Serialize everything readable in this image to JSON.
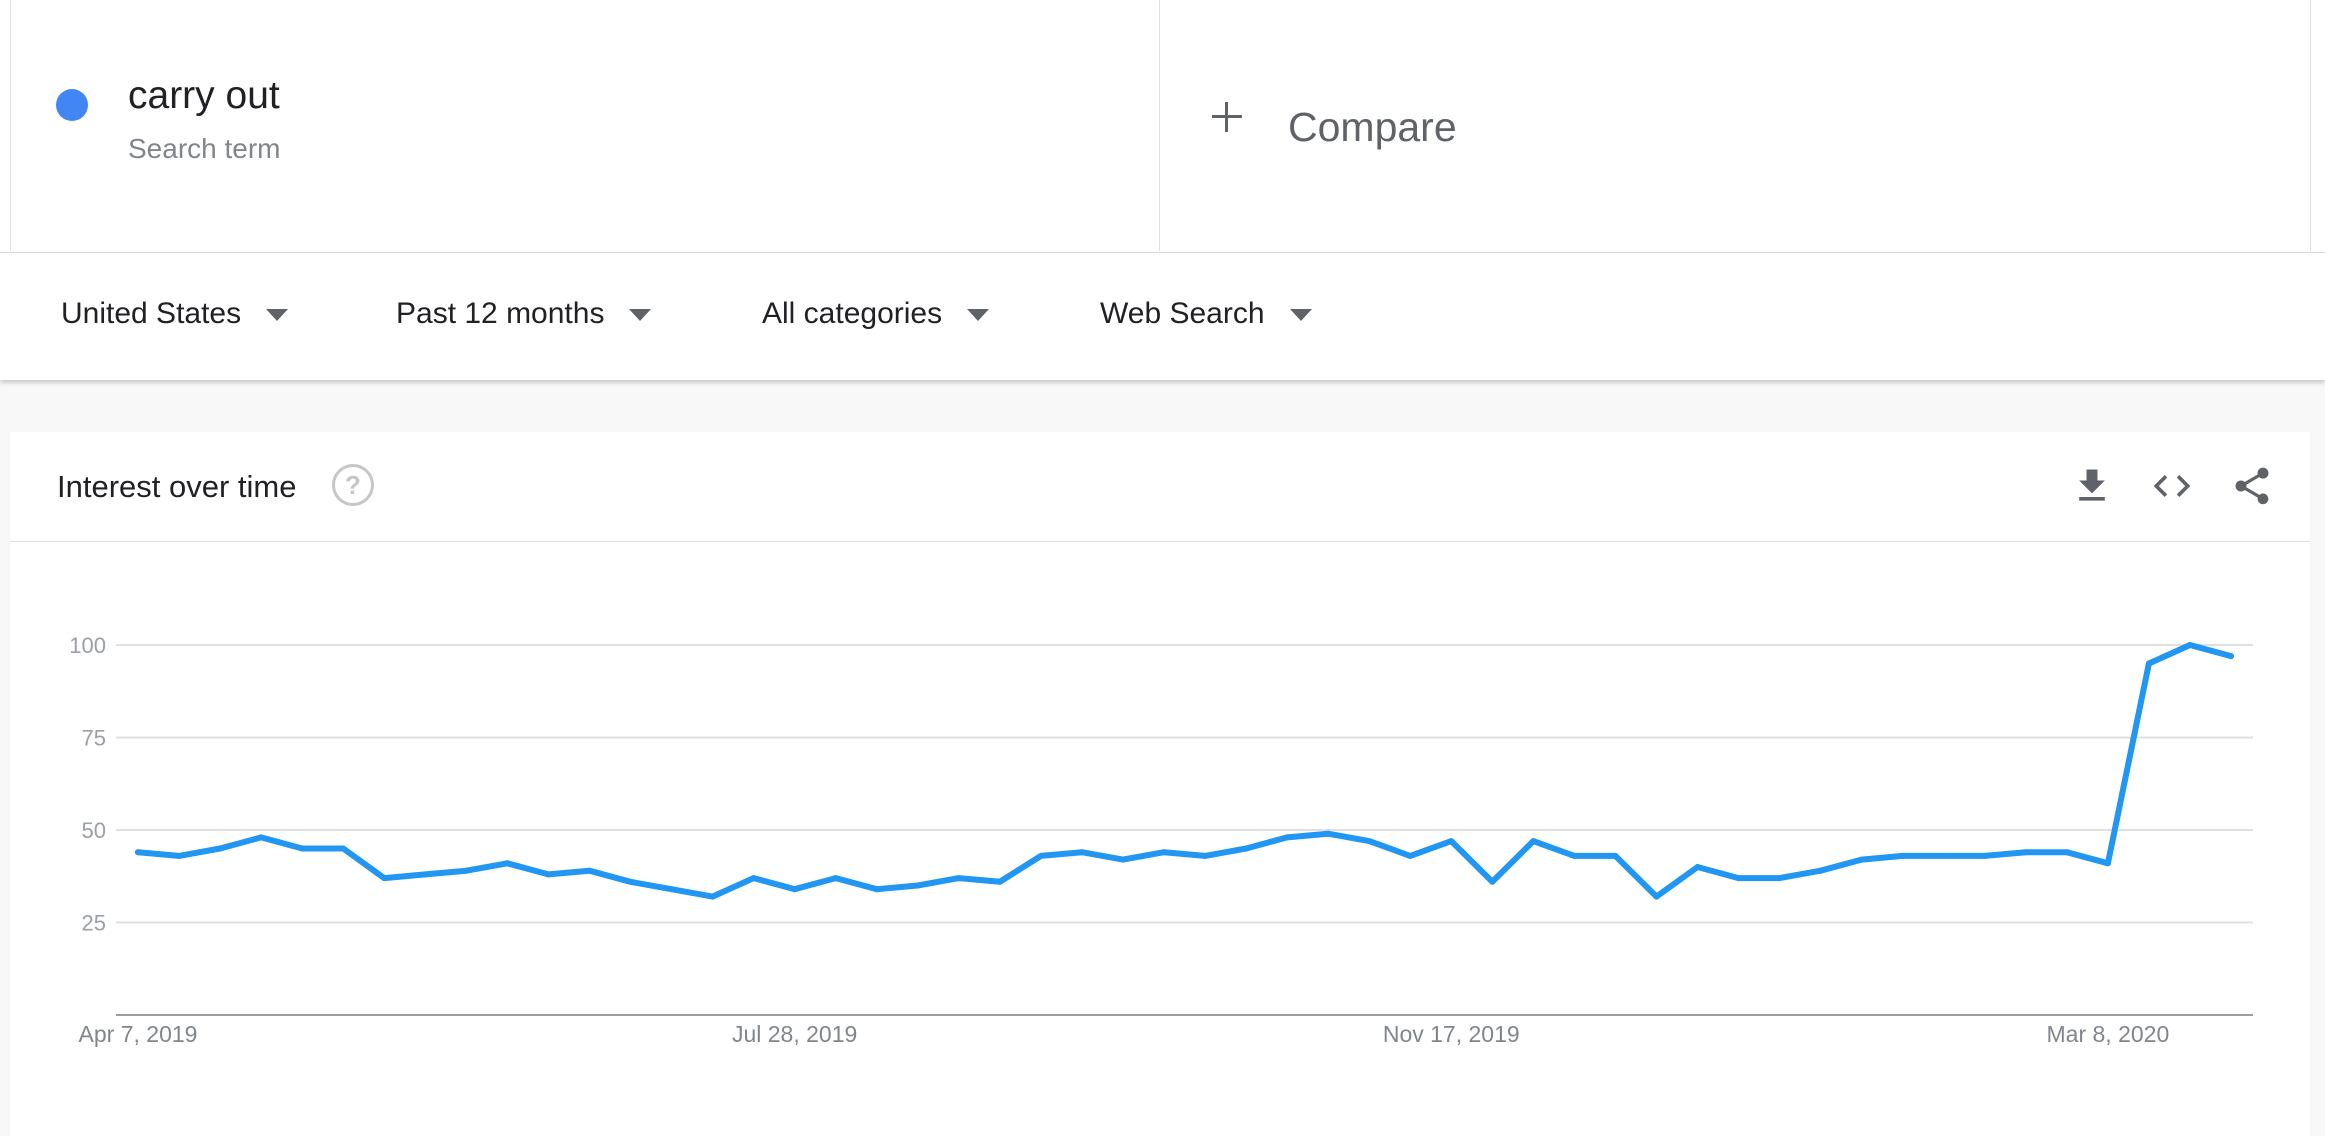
{
  "search_term": {
    "name": "carry out",
    "type_label": "Search term",
    "color": "#4285f4"
  },
  "compare": {
    "label": "Compare"
  },
  "filters": {
    "region": "United States",
    "time_range": "Past 12 months",
    "category": "All categories",
    "search_type": "Web Search"
  },
  "chart_card": {
    "title": "Interest over time",
    "icons": [
      "help-icon",
      "download-icon",
      "embed-icon",
      "share-icon"
    ]
  },
  "chart_data": {
    "type": "line",
    "title": "",
    "xlabel": "",
    "ylabel": "",
    "ylim": [
      0,
      100
    ],
    "yticks": [
      25,
      50,
      75,
      100
    ],
    "grid": true,
    "x_tick_labels": [
      "Apr 7, 2019",
      "Jul 28, 2019",
      "Nov 17, 2019",
      "Mar 8, 2020"
    ],
    "x": [
      "Apr 7, 2019",
      "Apr 14, 2019",
      "Apr 21, 2019",
      "Apr 28, 2019",
      "May 5, 2019",
      "May 12, 2019",
      "May 19, 2019",
      "May 26, 2019",
      "Jun 2, 2019",
      "Jun 9, 2019",
      "Jun 16, 2019",
      "Jun 23, 2019",
      "Jun 30, 2019",
      "Jul 7, 2019",
      "Jul 14, 2019",
      "Jul 21, 2019",
      "Jul 28, 2019",
      "Aug 4, 2019",
      "Aug 11, 2019",
      "Aug 18, 2019",
      "Aug 25, 2019",
      "Sep 1, 2019",
      "Sep 8, 2019",
      "Sep 15, 2019",
      "Sep 22, 2019",
      "Sep 29, 2019",
      "Oct 6, 2019",
      "Oct 13, 2019",
      "Oct 20, 2019",
      "Oct 27, 2019",
      "Nov 3, 2019",
      "Nov 10, 2019",
      "Nov 17, 2019",
      "Nov 24, 2019",
      "Dec 1, 2019",
      "Dec 8, 2019",
      "Dec 15, 2019",
      "Dec 22, 2019",
      "Dec 29, 2019",
      "Jan 5, 2020",
      "Jan 12, 2020",
      "Jan 19, 2020",
      "Jan 26, 2020",
      "Feb 2, 2020",
      "Feb 9, 2020",
      "Feb 16, 2020",
      "Feb 23, 2020",
      "Mar 1, 2020",
      "Mar 8, 2020",
      "Mar 15, 2020",
      "Mar 22, 2020",
      "Mar 29, 2020"
    ],
    "series": [
      {
        "color": "#2196f3",
        "values": [
          44,
          43,
          45,
          48,
          45,
          45,
          37,
          38,
          39,
          41,
          38,
          39,
          36,
          34,
          32,
          37,
          34,
          37,
          34,
          35,
          37,
          36,
          43,
          44,
          42,
          44,
          43,
          45,
          48,
          49,
          47,
          43,
          47,
          36,
          47,
          43,
          43,
          32,
          40,
          37,
          37,
          39,
          42,
          43,
          43,
          43,
          44,
          44,
          41,
          95,
          100,
          97
        ]
      }
    ]
  }
}
